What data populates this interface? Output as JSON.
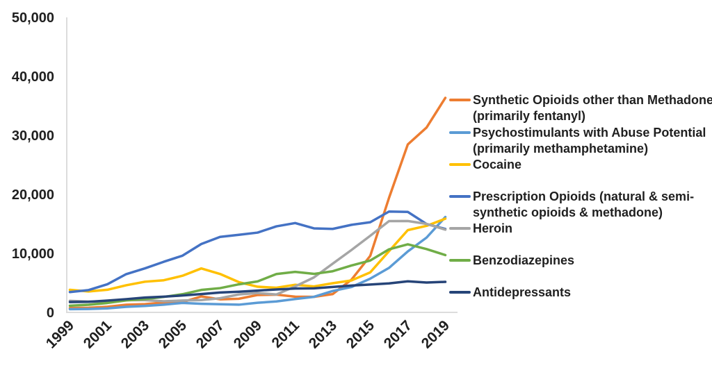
{
  "chart_data": {
    "type": "line",
    "title": "",
    "xlabel": "",
    "ylabel": "",
    "x": [
      1999,
      2000,
      2001,
      2002,
      2003,
      2004,
      2005,
      2006,
      2007,
      2008,
      2009,
      2010,
      2011,
      2012,
      2013,
      2014,
      2015,
      2016,
      2017,
      2018,
      2019
    ],
    "x_tick_labels": [
      "1999",
      "2001",
      "2003",
      "2005",
      "2007",
      "2009",
      "2011",
      "2013",
      "2015",
      "2017",
      "2019"
    ],
    "x_tick_every": 2,
    "y_ticks": [
      0,
      10000,
      20000,
      30000,
      40000,
      50000
    ],
    "y_tick_labels": [
      "0",
      "10,000",
      "20,000",
      "30,000",
      "40,000",
      "50,000"
    ],
    "ylim": [
      0,
      50000
    ],
    "grid": "none",
    "legend_position": "right",
    "axis_line_color": "#dcdcdc",
    "text_color": "#1f1f1f",
    "series": [
      {
        "id": "synthetic-opioids",
        "name": "Synthetic Opioids other than Methadone (primarily fentanyl)",
        "legend_lines": [
          "Synthetic Opioids other than Methadone",
          "(primarily fentanyl)"
        ],
        "color": "#ED7D31",
        "values": [
          730,
          782,
          957,
          1295,
          1400,
          1664,
          1742,
          2707,
          2213,
          2306,
          2946,
          3007,
          2666,
          2628,
          3105,
          5544,
          9580,
          19413,
          28466,
          31335,
          36359
        ]
      },
      {
        "id": "psychostimulants",
        "name": "Psychostimulants with Abuse Potential (primarily methamphetamine)",
        "legend_lines": [
          "Psychostimulants with Abuse Potential",
          "(primarily methamphetamine)"
        ],
        "color": "#5B9BD5",
        "values": [
          547,
          578,
          676,
          941,
          1089,
          1305,
          1608,
          1462,
          1378,
          1302,
          1632,
          1854,
          2266,
          2635,
          3627,
          4298,
          5716,
          7542,
          10333,
          12676,
          16167
        ]
      },
      {
        "id": "cocaine",
        "name": "Cocaine",
        "legend_lines": [
          "Cocaine"
        ],
        "color": "#FFC000",
        "values": [
          3822,
          3544,
          3833,
          4599,
          5199,
          5443,
          6208,
          7448,
          6512,
          5129,
          4350,
          4183,
          4681,
          4404,
          4944,
          5415,
          6784,
          10375,
          13942,
          14666,
          15883
        ]
      },
      {
        "id": "prescription-opioids",
        "name": "Prescription Opioids (natural & semi-synthetic opioids & methadone)",
        "legend_lines": [
          "Prescription Opioids (natural & semi-",
          "synthetic opioids & methadone)"
        ],
        "color": "#4472C4",
        "values": [
          3442,
          3785,
          4770,
          6483,
          7461,
          8577,
          9612,
          11589,
          12796,
          13149,
          13523,
          14583,
          15140,
          14240,
          14145,
          14838,
          15281,
          17087,
          17029,
          14975,
          14139
        ]
      },
      {
        "id": "heroin",
        "name": "Heroin",
        "legend_lines": [
          "Heroin"
        ],
        "color": "#A5A5A5",
        "values": [
          1960,
          1842,
          1779,
          2089,
          2080,
          1878,
          2009,
          2088,
          2399,
          3041,
          3278,
          3036,
          4397,
          5925,
          8257,
          10574,
          12989,
          15469,
          15482,
          14996,
          14019
        ]
      },
      {
        "id": "benzodiazepines",
        "name": "Benzodiazepines",
        "legend_lines": [
          "Benzodiazepines"
        ],
        "color": "#70AD47",
        "values": [
          1135,
          1298,
          1594,
          2022,
          2248,
          2627,
          3084,
          3805,
          4111,
          4754,
          5252,
          6497,
          6872,
          6524,
          6973,
          7945,
          8791,
          10684,
          11537,
          10724,
          9711
        ]
      },
      {
        "id": "antidepressants",
        "name": "Antidepressants",
        "legend_lines": [
          "Antidepressants"
        ],
        "color": "#264478",
        "values": [
          1749,
          1798,
          1997,
          2243,
          2512,
          2662,
          2861,
          3097,
          3366,
          3500,
          3693,
          3889,
          4037,
          4071,
          4305,
          4548,
          4717,
          4917,
          5269,
          5064,
          5175
        ]
      }
    ]
  }
}
